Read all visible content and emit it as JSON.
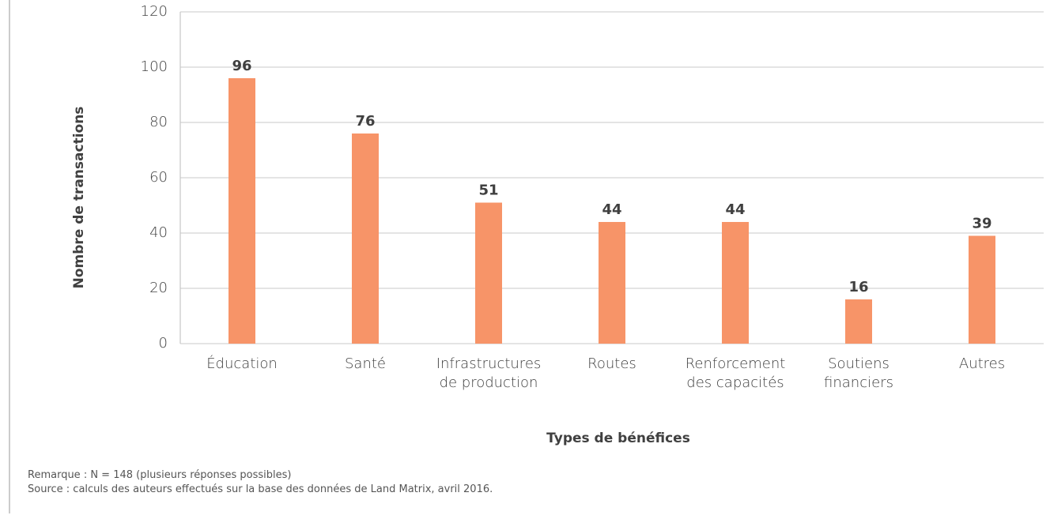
{
  "chart_data": {
    "type": "bar",
    "categories": [
      "Éducation",
      "Santé",
      "Infrastructures de production",
      "Routes",
      "Renforcement des capacités",
      "Soutiens financiers",
      "Autres"
    ],
    "values": [
      96,
      76,
      51,
      44,
      44,
      16,
      39
    ],
    "color": "#f79468",
    "ylim": [
      0,
      120
    ],
    "yticks": [
      0,
      20,
      40,
      60,
      80,
      100,
      120
    ],
    "grid": true,
    "x_label": "Types de bénéfices",
    "y_label": "Nombre de transactions",
    "notes": [
      "Remarque : N = 148 (plusieurs réponses possibles)",
      "Source : calculs des auteurs effectués sur la base des données de Land Matrix, avril 2016."
    ]
  }
}
